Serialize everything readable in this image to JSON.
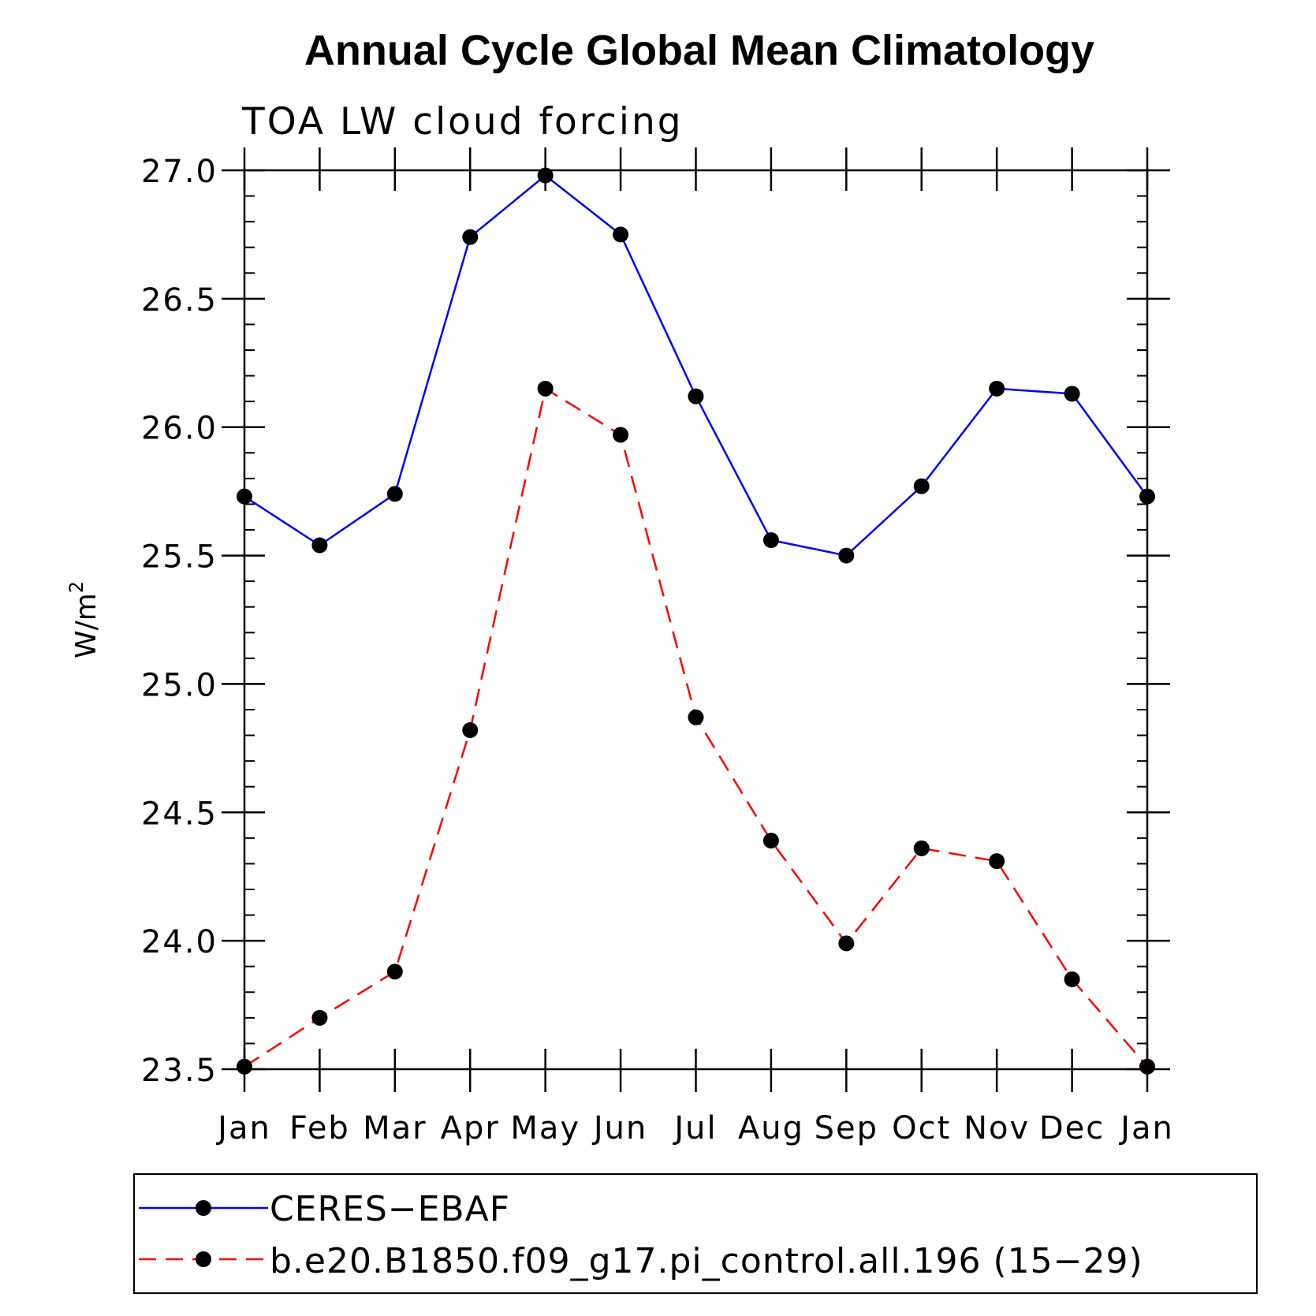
{
  "chart_data": {
    "type": "line",
    "title": "Annual Cycle Global Mean Climatology",
    "subtitle": "TOA LW cloud forcing",
    "ylabel": "W/m",
    "ylabel_superscript": "2",
    "xlabel": "",
    "categories": [
      "Jan",
      "Feb",
      "Mar",
      "Apr",
      "May",
      "Jun",
      "Jul",
      "Aug",
      "Sep",
      "Oct",
      "Nov",
      "Dec",
      "Jan"
    ],
    "ylim": [
      23.5,
      27.0
    ],
    "yticks": [
      "23.5",
      "24.0",
      "24.5",
      "25.0",
      "25.5",
      "26.0",
      "26.5",
      "27.0"
    ],
    "grid": false,
    "legend_position": "bottom",
    "series": [
      {
        "name": "CERES−EBAF",
        "color": "#0000ff",
        "dash": "solid",
        "marker": "circle",
        "values": [
          25.73,
          25.54,
          25.74,
          26.74,
          26.98,
          26.75,
          26.12,
          25.56,
          25.5,
          25.77,
          26.15,
          26.13,
          25.73
        ]
      },
      {
        "name": "b.e20.B1850.f09_g17.pi_control.all.196 (15−29)",
        "color": "#ff0000",
        "dash": "dashed",
        "marker": "circle",
        "values": [
          23.51,
          23.7,
          23.88,
          24.82,
          26.15,
          25.97,
          24.87,
          24.39,
          23.99,
          24.36,
          24.31,
          23.85,
          23.51
        ]
      }
    ]
  }
}
